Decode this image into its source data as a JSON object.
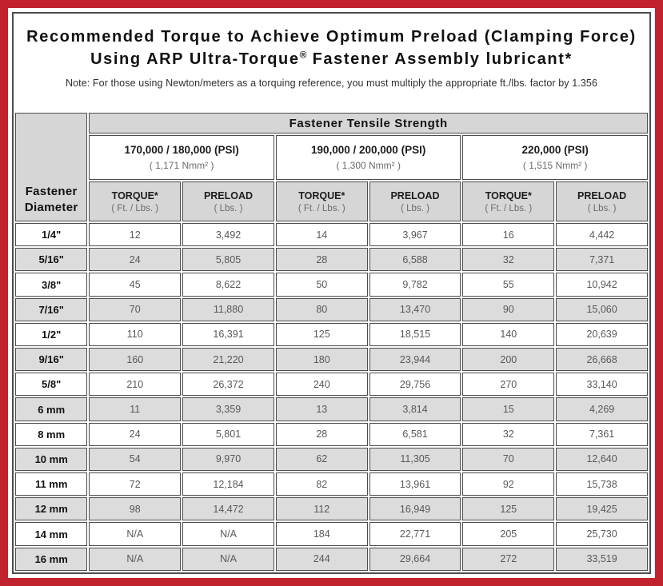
{
  "colors": {
    "accent_red": "#c1222d",
    "header_gray": "#d6d6d6",
    "row_stripe": "#dcdcdc"
  },
  "page": {
    "title_line1": "Recommended Torque to Achieve Optimum Preload (Clamping Force)",
    "title_line2_pre": "Using ARP Ultra-Torque",
    "title_line2_reg": "®",
    "title_line2_post": " Fastener Assembly lubricant*",
    "note": "Note: For those using Newton/meters as a torquing reference, you must multiply the appropriate ft./lbs. factor by 1.356"
  },
  "table": {
    "corner_line1": "Fastener",
    "corner_line2": "Diameter",
    "tensile_header": "Fastener Tensile Strength",
    "psi_groups": [
      {
        "psi": "170,000 / 180,000 (PSI)",
        "nmm": "( 1,171 Nmm² )"
      },
      {
        "psi": "190,000 / 200,000 (PSI)",
        "nmm": "( 1,300 Nmm² )"
      },
      {
        "psi": "220,000 (PSI)",
        "nmm": "( 1,515 Nmm² )"
      }
    ],
    "sub": {
      "torque_label": "TORQUE*",
      "torque_unit": "( Ft. / Lbs. )",
      "preload_label": "PRELOAD",
      "preload_unit": "( Lbs. )"
    },
    "rows": [
      {
        "diameter": "1/4\"",
        "values": [
          "12",
          "3,492",
          "14",
          "3,967",
          "16",
          "4,442"
        ]
      },
      {
        "diameter": "5/16\"",
        "values": [
          "24",
          "5,805",
          "28",
          "6,588",
          "32",
          "7,371"
        ]
      },
      {
        "diameter": "3/8\"",
        "values": [
          "45",
          "8,622",
          "50",
          "9,782",
          "55",
          "10,942"
        ]
      },
      {
        "diameter": "7/16\"",
        "values": [
          "70",
          "11,880",
          "80",
          "13,470",
          "90",
          "15,060"
        ]
      },
      {
        "diameter": "1/2\"",
        "values": [
          "110",
          "16,391",
          "125",
          "18,515",
          "140",
          "20,639"
        ]
      },
      {
        "diameter": "9/16\"",
        "values": [
          "160",
          "21,220",
          "180",
          "23,944",
          "200",
          "26,668"
        ]
      },
      {
        "diameter": "5/8\"",
        "values": [
          "210",
          "26,372",
          "240",
          "29,756",
          "270",
          "33,140"
        ]
      },
      {
        "diameter": "6 mm",
        "values": [
          "11",
          "3,359",
          "13",
          "3,814",
          "15",
          "4,269"
        ]
      },
      {
        "diameter": "8 mm",
        "values": [
          "24",
          "5,801",
          "28",
          "6,581",
          "32",
          "7,361"
        ]
      },
      {
        "diameter": "10 mm",
        "values": [
          "54",
          "9,970",
          "62",
          "11,305",
          "70",
          "12,640"
        ]
      },
      {
        "diameter": "11 mm",
        "values": [
          "72",
          "12,184",
          "82",
          "13,961",
          "92",
          "15,738"
        ]
      },
      {
        "diameter": "12 mm",
        "values": [
          "98",
          "14,472",
          "112",
          "16,949",
          "125",
          "19,425"
        ]
      },
      {
        "diameter": "14 mm",
        "values": [
          "N/A",
          "N/A",
          "184",
          "22,771",
          "205",
          "25,730"
        ]
      },
      {
        "diameter": "16 mm",
        "values": [
          "N/A",
          "N/A",
          "244",
          "29,664",
          "272",
          "33,519"
        ]
      }
    ]
  }
}
